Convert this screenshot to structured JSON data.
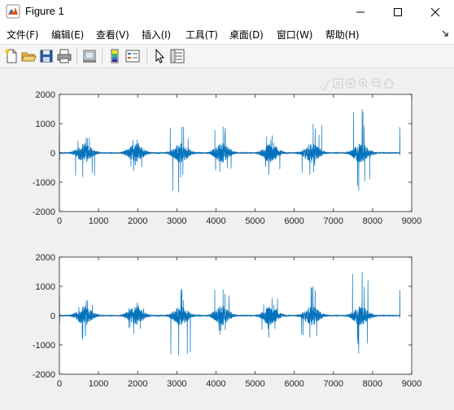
{
  "window": {
    "title": "Figure 1",
    "controls": [
      "minimize-icon",
      "maximize-icon",
      "close-icon"
    ]
  },
  "menu": [
    {
      "label": "文件(F)"
    },
    {
      "label": "编辑(E)"
    },
    {
      "label": "查看(V)"
    },
    {
      "label": "插入(I)"
    },
    {
      "label": "工具(T)"
    },
    {
      "label": "桌面(D)"
    },
    {
      "label": "窗口(W)"
    },
    {
      "label": "帮助(H)"
    }
  ],
  "toolbar": {
    "buttons": [
      "new-figure-icon",
      "open-file-icon",
      "save-icon",
      "print-icon",
      "link-plot-icon",
      "insert-colorbar-icon",
      "insert-legend-icon",
      "edit-plot-icon",
      "property-inspector-icon"
    ]
  },
  "axes_toolbar": [
    "brush-icon",
    "data-tips-icon",
    "pan-icon",
    "zoom-in-icon",
    "zoom-out-icon",
    "home-icon"
  ],
  "colors": {
    "series_blue": "#0072bd",
    "series_orange": "#d95319"
  },
  "chart_data": [
    {
      "type": "line",
      "title": "",
      "xlabel": "",
      "ylabel": "",
      "xlim": [
        0,
        9000
      ],
      "ylim": [
        -2000,
        2000
      ],
      "xticks": [
        "0",
        "1000",
        "2000",
        "3000",
        "4000",
        "5000",
        "6000",
        "7000",
        "8000",
        "9000"
      ],
      "yticks": [
        "2000",
        "1000",
        "0",
        "-1000",
        "-2000"
      ],
      "grid": false,
      "n_samples": 8700,
      "bursts": [
        {
          "center": 650,
          "width": 650,
          "max": 520,
          "min": -820
        },
        {
          "center": 1950,
          "width": 650,
          "max": 450,
          "min": -620
        },
        {
          "center": 3100,
          "width": 650,
          "max": 900,
          "min": -1350
        },
        {
          "center": 4150,
          "width": 650,
          "max": 900,
          "min": -650
        },
        {
          "center": 5400,
          "width": 650,
          "max": 600,
          "min": -750
        },
        {
          "center": 6450,
          "width": 650,
          "max": 1000,
          "min": -750
        },
        {
          "center": 7700,
          "width": 650,
          "max": 1500,
          "min": -1300
        }
      ],
      "series": [
        {
          "color": "#0072bd",
          "type": "signal"
        },
        {
          "color": "#d95319",
          "type": "envelope"
        }
      ]
    },
    {
      "type": "line",
      "title": "",
      "xlabel": "",
      "ylabel": "",
      "xlim": [
        0,
        9000
      ],
      "ylim": [
        -2000,
        2000
      ],
      "xticks": [
        "0",
        "1000",
        "2000",
        "3000",
        "4000",
        "5000",
        "6000",
        "7000",
        "8000",
        "9000"
      ],
      "yticks": [
        "2000",
        "1000",
        "0",
        "-1000",
        "-2000"
      ],
      "grid": false,
      "n_samples": 8700,
      "bursts": [
        {
          "center": 650,
          "width": 650,
          "max": 520,
          "min": -820
        },
        {
          "center": 1950,
          "width": 650,
          "max": 450,
          "min": -620
        },
        {
          "center": 3100,
          "width": 650,
          "max": 900,
          "min": -1350
        },
        {
          "center": 4150,
          "width": 650,
          "max": 900,
          "min": -650
        },
        {
          "center": 5400,
          "width": 650,
          "max": 600,
          "min": -750
        },
        {
          "center": 6450,
          "width": 650,
          "max": 1000,
          "min": -750
        },
        {
          "center": 7700,
          "width": 650,
          "max": 1500,
          "min": -1300
        }
      ],
      "series": [
        {
          "color": "#0072bd",
          "type": "signal"
        },
        {
          "color": "#d95319",
          "type": "envelope"
        }
      ]
    }
  ]
}
